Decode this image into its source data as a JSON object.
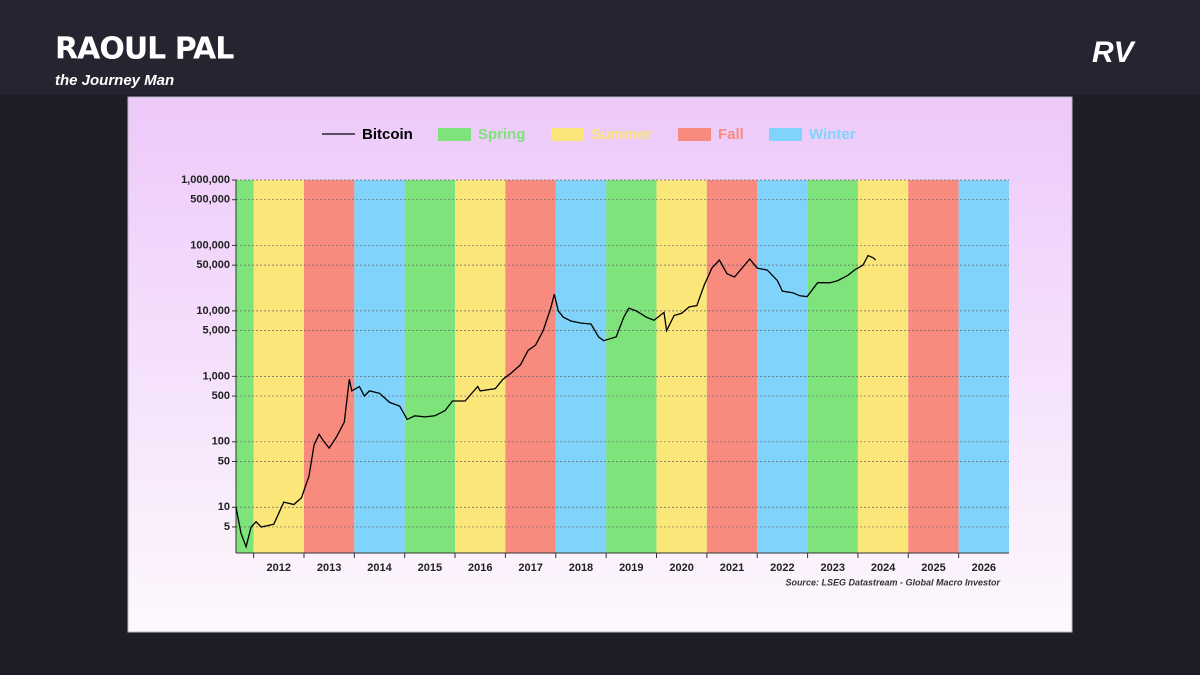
{
  "branding": {
    "name": "RAOUL PAL",
    "tagline": "the Journey Man",
    "logo": "RV"
  },
  "chart_data": {
    "type": "line",
    "annotation": "Source: LSEG Datastream - Global Macro Investor",
    "log_y": true,
    "grid": true,
    "xlim": [
      2011.65,
      2027
    ],
    "xticks": [
      2012,
      2013,
      2014,
      2015,
      2016,
      2017,
      2018,
      2019,
      2020,
      2021,
      2022,
      2023,
      2024,
      2025,
      2026
    ],
    "ylim": [
      2,
      1000000
    ],
    "yticks": [
      5,
      10,
      50,
      100,
      500,
      {
        "value": 1000,
        "label": "1,000"
      },
      {
        "value": 5000,
        "label": "5,000"
      },
      {
        "value": 10000,
        "label": "10,000"
      },
      {
        "value": 50000,
        "label": "50,000"
      },
      {
        "value": 100000,
        "label": "100,000"
      },
      {
        "value": 500000,
        "label": "500,000"
      },
      {
        "value": 1000000,
        "label": "1,000,000"
      }
    ],
    "series": [
      {
        "name": "Bitcoin",
        "color": "#000000",
        "x": [
          2011.65,
          2011.75,
          2011.85,
          2011.95,
          2012.05,
          2012.15,
          2012.4,
          2012.6,
          2012.8,
          2012.95,
          2013.1,
          2013.2,
          2013.3,
          2013.4,
          2013.5,
          2013.65,
          2013.8,
          2013.9,
          2013.95,
          2014.1,
          2014.2,
          2014.3,
          2014.5,
          2014.7,
          2014.9,
          2015.05,
          2015.2,
          2015.4,
          2015.6,
          2015.8,
          2015.95,
          2016.2,
          2016.45,
          2016.5,
          2016.8,
          2016.95,
          2017.1,
          2017.3,
          2017.45,
          2017.6,
          2017.75,
          2017.9,
          2017.97,
          2018.05,
          2018.15,
          2018.3,
          2018.5,
          2018.7,
          2018.85,
          2018.95,
          2019.2,
          2019.35,
          2019.45,
          2019.6,
          2019.8,
          2019.95,
          2020.15,
          2020.2,
          2020.35,
          2020.5,
          2020.65,
          2020.8,
          2020.95,
          2021.1,
          2021.25,
          2021.4,
          2021.55,
          2021.7,
          2021.85,
          2022.0,
          2022.2,
          2022.4,
          2022.5,
          2022.7,
          2022.85,
          2022.99,
          2023.2,
          2023.45,
          2023.6,
          2023.8,
          2023.95,
          2024.1,
          2024.2,
          2024.3,
          2024.35
        ],
        "values": [
          10,
          4,
          2.5,
          5,
          6,
          5,
          5.5,
          12,
          11,
          14,
          30,
          90,
          130,
          100,
          80,
          120,
          200,
          900,
          600,
          700,
          500,
          600,
          550,
          400,
          350,
          220,
          250,
          240,
          250,
          300,
          420,
          420,
          700,
          600,
          650,
          900,
          1100,
          1500,
          2500,
          3000,
          5000,
          11000,
          18000,
          10000,
          8000,
          7000,
          6500,
          6300,
          4000,
          3500,
          4000,
          8000,
          11000,
          10000,
          8000,
          7200,
          9500,
          5000,
          8500,
          9200,
          11500,
          12000,
          25000,
          45000,
          60000,
          37000,
          33000,
          45000,
          62000,
          45000,
          42000,
          29000,
          20000,
          19000,
          17000,
          16500,
          27000,
          27000,
          29000,
          35000,
          43000,
          50000,
          70000,
          65000,
          60000
        ]
      },
      {
        "name": "Spring",
        "color": "#7de37a",
        "periods": [
          [
            2011.65,
            2012
          ],
          [
            2015,
            2016
          ],
          [
            2019,
            2020
          ],
          [
            2023,
            2024
          ]
        ]
      },
      {
        "name": "Summer",
        "color": "#fbe67a",
        "periods": [
          [
            2012,
            2013
          ],
          [
            2016,
            2017
          ],
          [
            2020,
            2021
          ],
          [
            2024,
            2025
          ]
        ]
      },
      {
        "name": "Fall",
        "color": "#f98a7e",
        "periods": [
          [
            2013,
            2014
          ],
          [
            2017,
            2018
          ],
          [
            2021,
            2022
          ],
          [
            2025,
            2026
          ]
        ]
      },
      {
        "name": "Winter",
        "color": "#80d4fb",
        "periods": [
          [
            2014,
            2015
          ],
          [
            2018,
            2019
          ],
          [
            2022,
            2023
          ],
          [
            2026,
            2027
          ]
        ]
      }
    ]
  }
}
